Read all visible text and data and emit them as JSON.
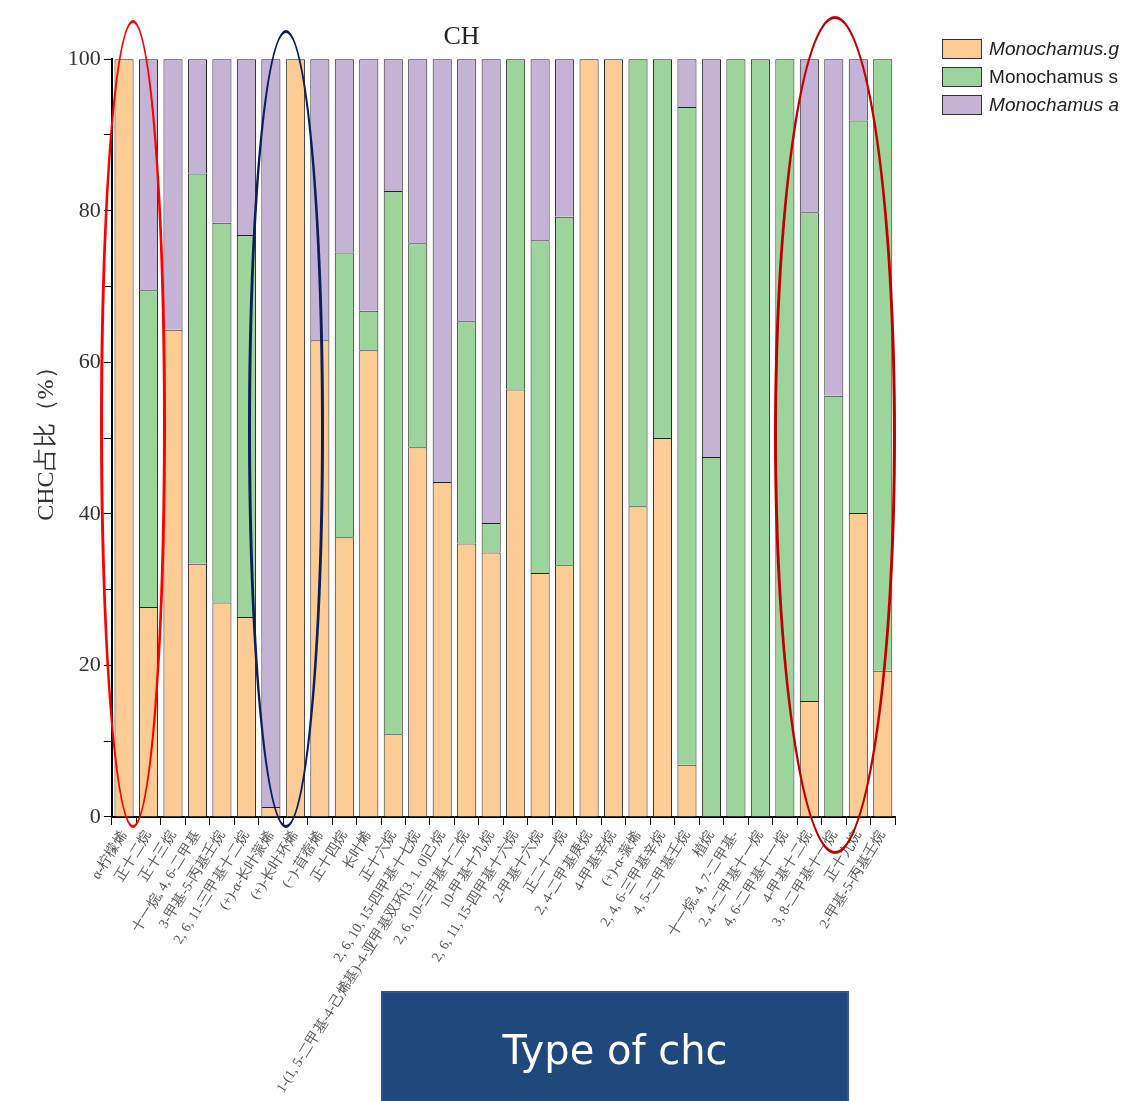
{
  "chart_data": {
    "type": "bar",
    "title": "CH",
    "ylabel": "CHC占比（%）",
    "stacked": true,
    "legend": "top right",
    "grid": false,
    "annotations": [
      "Type of chc"
    ],
    "categories": [
      "α-柠檬烯",
      "正十二烷",
      "正十三烷",
      "十一烷, 4, 6-二甲基",
      "3-甲基-5-丙基壬烷",
      "2, 6, 11-三甲基十二烷",
      "(+)-α-长叶蒎烯",
      "(+)-长叶环烯",
      "(−)-苜蓿烯",
      "正十四烷",
      "长叶烯",
      "正十六烷",
      "2, 6, 10, 15-四甲基十七烷",
      "1-(1, 5-二甲基-4-己烯基)-4-亚甲基双环[3. 1. 0]己烷",
      "2, 6, 10-三甲基十二烷",
      "10-甲基十九烷",
      "2, 6, 11, 15-四甲基十六烷",
      "2-甲基十六烷",
      "正二十一烷",
      "2, 4-二甲基庚烷",
      "4-甲基辛烷",
      "(+)-α-蒎烯",
      "2, 4, 6-三甲基辛烷",
      "4, 5-二甲基壬烷",
      "植烷",
      "十一烷, 4, 7-二甲基-",
      "2, 4-二甲基十一烷",
      "4, 6-二甲基十一烷",
      "4-甲基十二烷",
      "3, 8-二甲基十一烷",
      "正十九烷",
      "2-甲基-5-丙基壬烷"
    ],
    "ylim": [
      0,
      100
    ],
    "yticks": [
      0,
      {
        "value": 10,
        "label": null
      },
      20,
      {
        "value": 30,
        "label": null
      },
      40,
      {
        "value": 50,
        "label": null
      },
      60,
      {
        "value": 70,
        "label": null
      },
      80,
      {
        "value": 90,
        "label": null
      },
      100
    ],
    "series": [
      {
        "name": "Monochamus.g",
        "color": "#fdcb94",
        "values": [
          100,
          27.7,
          64.3,
          33.4,
          28.3,
          26.4,
          1.3,
          100,
          62.9,
          36.9,
          61.6,
          10.9,
          48.8,
          44.2,
          36.1,
          34.9,
          56.4,
          32.2,
          33.2,
          100,
          100,
          41.0,
          50.0,
          6.9,
          0,
          0,
          0,
          0,
          15.3,
          0,
          40.1,
          19.3
        ]
      },
      {
        "name": "Monochamus s",
        "color": "#9dd49c",
        "values": [
          0,
          41.8,
          0,
          51.5,
          50.1,
          50.4,
          0,
          0,
          0,
          37.6,
          5.2,
          71.7,
          26.9,
          0,
          29.3,
          3.9,
          43.6,
          43.9,
          46.0,
          0,
          0,
          59.0,
          50.0,
          86.8,
          47.5,
          100,
          100,
          100,
          64.5,
          55.6,
          51.8,
          80.7
        ]
      },
      {
        "name": "Monochamus a",
        "color": "#c5b3d6",
        "values": [
          0,
          30.5,
          35.7,
          15.1,
          21.6,
          23.2,
          98.7,
          0,
          37.1,
          25.5,
          33.2,
          17.4,
          24.3,
          55.8,
          34.6,
          61.2,
          0,
          23.9,
          20.8,
          0,
          0,
          0,
          0,
          6.3,
          52.5,
          0,
          0,
          0,
          20.2,
          44.4,
          8.1,
          0
        ]
      }
    ]
  }
}
